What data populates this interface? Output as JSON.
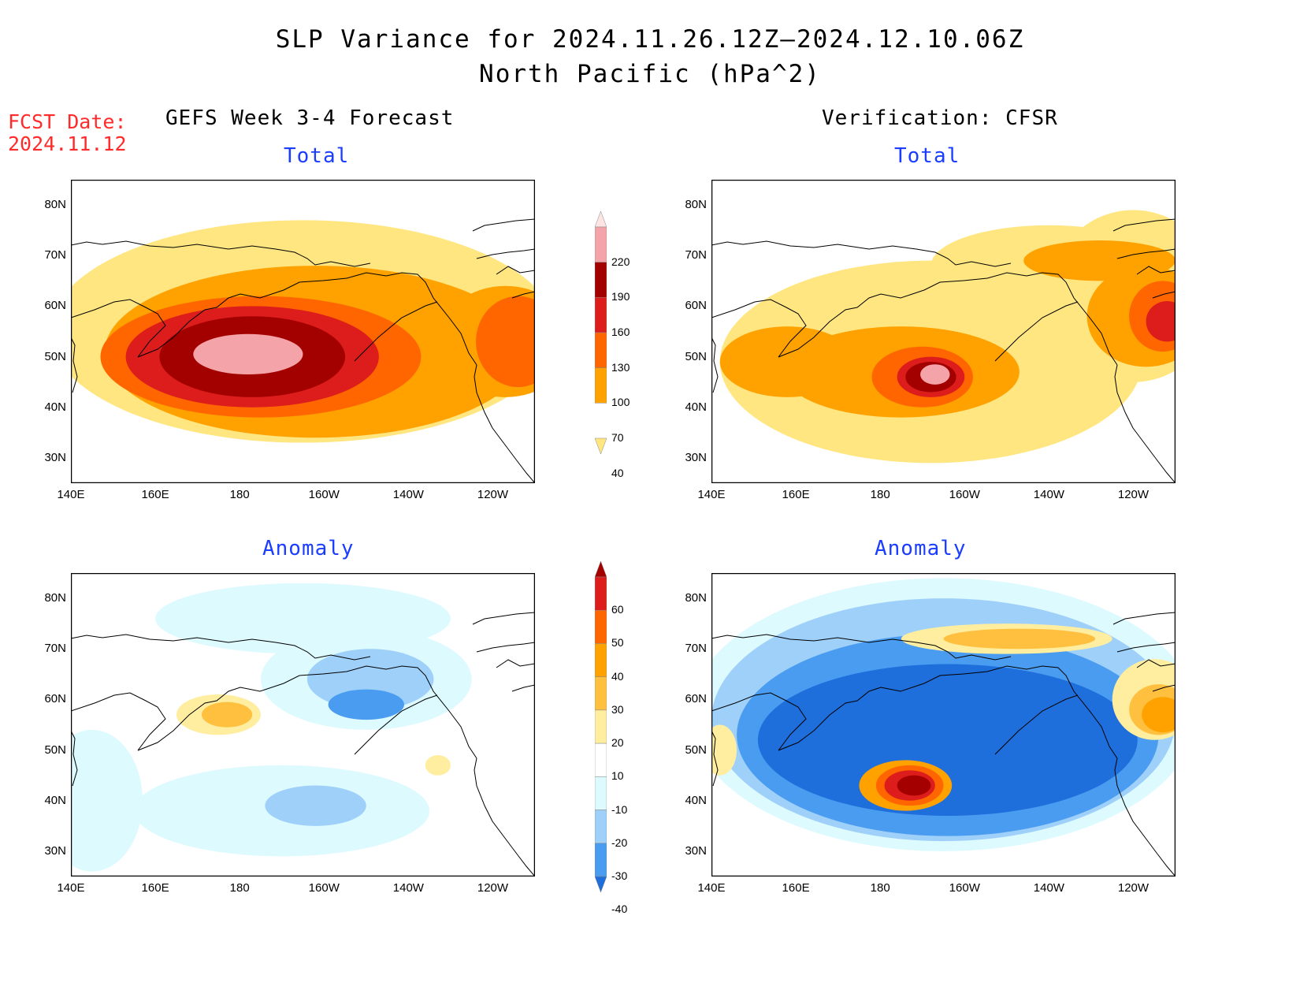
{
  "header": {
    "title_line1": "SLP Variance for 2024.11.26.12Z–2024.12.10.06Z",
    "title_line2": "North Pacific (hPa^2)"
  },
  "fcst": {
    "line1": "FCST Date:",
    "line2": "2024.11.12"
  },
  "columns": {
    "left": "GEFS Week 3-4 Forecast",
    "right": "Verification: CFSR"
  },
  "panels": {
    "tl": {
      "subtitle": "Total",
      "colormap": "total"
    },
    "tr": {
      "subtitle": "Total",
      "colormap": "total"
    },
    "bl": {
      "subtitle": "Anomaly",
      "colormap": "anom"
    },
    "br": {
      "subtitle": "Anomaly",
      "colormap": "anom"
    }
  },
  "axes": {
    "lat_ticks": [
      "80N",
      "70N",
      "60N",
      "50N",
      "40N",
      "30N"
    ],
    "lon_ticks": [
      "140E",
      "160E",
      "180",
      "160W",
      "140W",
      "120W"
    ],
    "lat_range": [
      25,
      85
    ],
    "lon_range": [
      140,
      250
    ]
  },
  "colorbars": {
    "total": {
      "labels": [
        "220",
        "190",
        "160",
        "130",
        "100",
        "70",
        "40"
      ],
      "colors": [
        "#ffe4e4",
        "#f4a3a8",
        "#a30000",
        "#dd1c1c",
        "#ff6600",
        "#ffa200",
        "#ffe680"
      ]
    },
    "anom": {
      "labels": [
        "60",
        "50",
        "40",
        "30",
        "20",
        "10",
        "-10",
        "-20",
        "-30",
        "-40"
      ],
      "colors": [
        "#a50000",
        "#dd1c1c",
        "#ff6600",
        "#ffa200",
        "#ffc040",
        "#ffeea0",
        "#ffffff",
        "#ddfaff",
        "#9ed0fa",
        "#4a9cf0",
        "#1e6edc"
      ]
    }
  },
  "map_layers": {
    "tl": [
      {
        "level": 40,
        "blobs": [
          [
            195,
            55,
            60,
            22
          ]
        ]
      },
      {
        "level": 70,
        "blobs": [
          [
            198,
            51,
            50,
            17
          ],
          [
            243,
            53,
            16,
            11
          ]
        ]
      },
      {
        "level": 100,
        "blobs": [
          [
            185,
            50,
            38,
            12
          ],
          [
            246,
            53,
            10,
            9
          ]
        ]
      },
      {
        "level": 130,
        "blobs": [
          [
            183,
            50,
            30,
            10
          ]
        ]
      },
      {
        "level": 160,
        "blobs": [
          [
            183,
            50,
            22,
            8
          ]
        ]
      },
      {
        "level": 190,
        "blobs": [
          [
            182,
            50.5,
            13,
            4
          ]
        ]
      }
    ],
    "tr": [
      {
        "level": 40,
        "blobs": [
          [
            192,
            49,
            50,
            20
          ],
          [
            220,
            68,
            28,
            8
          ],
          [
            240,
            62,
            20,
            17
          ]
        ]
      },
      {
        "level": 70,
        "blobs": [
          [
            185,
            47,
            28,
            9
          ],
          [
            158,
            49,
            16,
            7
          ],
          [
            232,
            69,
            18,
            4
          ],
          [
            243,
            58,
            14,
            10
          ]
        ]
      },
      {
        "level": 100,
        "blobs": [
          [
            190,
            46,
            12,
            6
          ],
          [
            247,
            58,
            8,
            7
          ]
        ]
      },
      {
        "level": 130,
        "blobs": [
          [
            192,
            46,
            8,
            4
          ],
          [
            248,
            57,
            5,
            4
          ]
        ]
      },
      {
        "level": 160,
        "blobs": [
          [
            192,
            46,
            6,
            3
          ]
        ]
      },
      {
        "level": 190,
        "blobs": [
          [
            193,
            46.5,
            3.5,
            2
          ]
        ]
      }
    ],
    "bl": [
      {
        "level": -10,
        "blobs": [
          [
            195,
            76,
            35,
            7
          ],
          [
            210,
            64,
            25,
            10
          ],
          [
            190,
            38,
            35,
            9
          ],
          [
            145,
            40,
            12,
            14
          ]
        ]
      },
      {
        "level": -20,
        "blobs": [
          [
            211,
            64,
            15,
            6
          ],
          [
            198,
            39,
            12,
            4
          ]
        ]
      },
      {
        "level": -30,
        "blobs": [
          [
            210,
            59,
            9,
            3
          ]
        ]
      },
      {
        "level": 10,
        "blobs": [
          [
            175,
            57,
            10,
            4
          ],
          [
            227,
            47,
            3,
            2
          ]
        ]
      },
      {
        "level": 20,
        "blobs": [
          [
            177,
            57,
            6,
            2.5
          ]
        ]
      }
    ],
    "br": [
      {
        "level": -10,
        "blobs": [
          [
            195,
            57,
            60,
            27
          ]
        ]
      },
      {
        "level": -20,
        "blobs": [
          [
            195,
            56,
            55,
            24
          ]
        ]
      },
      {
        "level": -30,
        "blobs": [
          [
            196,
            53,
            50,
            20
          ]
        ]
      },
      {
        "level": -40,
        "blobs": [
          [
            196,
            52,
            45,
            15
          ]
        ]
      },
      {
        "level": 10,
        "blobs": [
          [
            210,
            72,
            25,
            3
          ],
          [
            245,
            60,
            10,
            8
          ],
          [
            142,
            50,
            4,
            5
          ]
        ]
      },
      {
        "level": 20,
        "blobs": [
          [
            213,
            72,
            18,
            2
          ],
          [
            246,
            58,
            7,
            5
          ]
        ]
      },
      {
        "level": 30,
        "blobs": [
          [
            247,
            57,
            5,
            3.5
          ],
          [
            186,
            43,
            11,
            5
          ]
        ]
      },
      {
        "level": 40,
        "blobs": [
          [
            187,
            43,
            8,
            4
          ]
        ]
      },
      {
        "level": 50,
        "blobs": [
          [
            187,
            43,
            6,
            3
          ]
        ]
      },
      {
        "level": 60,
        "blobs": [
          [
            188,
            43,
            4,
            2
          ]
        ]
      }
    ]
  }
}
